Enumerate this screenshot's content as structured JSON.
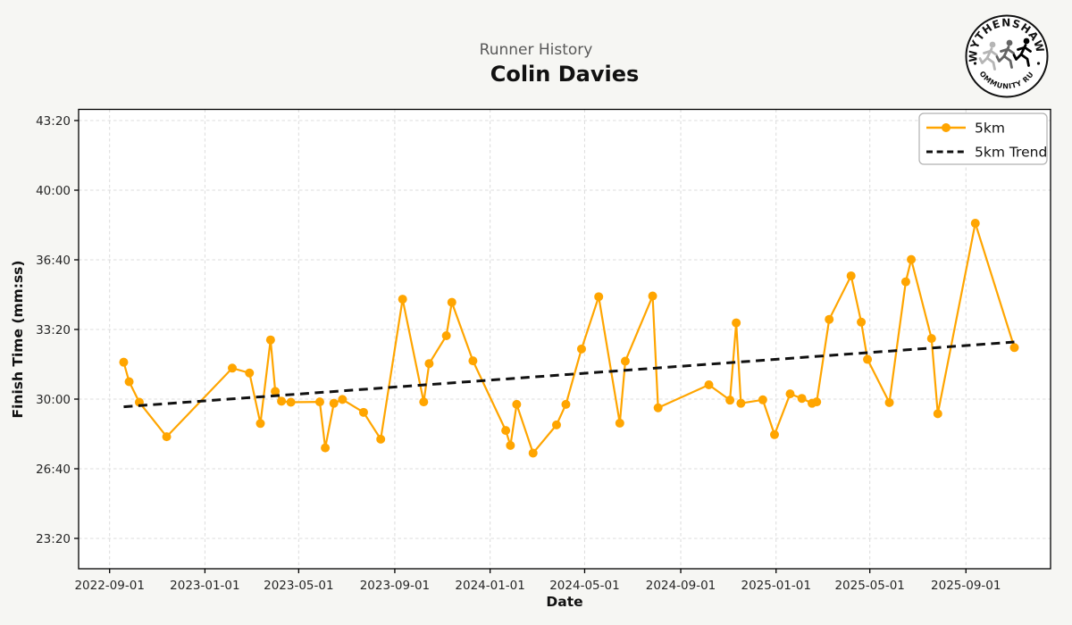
{
  "header": {
    "suptitle": "Runner History",
    "runner_name": "Colin Davies"
  },
  "logo": {
    "top_text": "WYTHENSHAWE",
    "bottom_text": "COMMUNITY RUN"
  },
  "legend": {
    "series_label": "5km",
    "trend_label": "5km Trend"
  },
  "colors": {
    "series": "#FFA500",
    "trend": "#111111",
    "figure_bg": "#f6f6f3",
    "plot_bg": "#ffffff",
    "grid": "#dcdcdc",
    "spine": "#000000"
  },
  "chart_data": {
    "type": "line",
    "title": "Runner History",
    "subtitle": "Colin Davies",
    "xlabel": "Date",
    "ylabel": "Finish Time (mm:ss)",
    "legend_entries": [
      "5km",
      "5km Trend"
    ],
    "legend_position": "upper right",
    "grid": true,
    "x_ticks": [
      "2022-09-01",
      "2023-01-01",
      "2023-05-01",
      "2023-09-01",
      "2024-01-01",
      "2024-05-01",
      "2024-09-01",
      "2025-01-01",
      "2025-05-01",
      "2025-09-01"
    ],
    "y_ticks": [
      "23:20",
      "26:40",
      "30:00",
      "33:20",
      "36:40",
      "40:00",
      "43:20"
    ],
    "x_range": [
      "2022-07-23",
      "2025-12-18"
    ],
    "y_range_mmss": [
      "21:53",
      "43:52"
    ],
    "series": [
      {
        "name": "5km",
        "marker": "circle",
        "points": [
          [
            "2022-09-19",
            "31:46"
          ],
          [
            "2022-09-26",
            "30:50"
          ],
          [
            "2022-10-09",
            "29:51"
          ],
          [
            "2022-11-13",
            "28:12"
          ],
          [
            "2023-02-05",
            "31:29"
          ],
          [
            "2023-02-27",
            "31:15"
          ],
          [
            "2023-03-13",
            "28:50"
          ],
          [
            "2023-03-26",
            "32:50"
          ],
          [
            "2023-04-01",
            "30:22"
          ],
          [
            "2023-04-09",
            "29:54"
          ],
          [
            "2023-04-21",
            "29:51"
          ],
          [
            "2023-05-28",
            "29:52"
          ],
          [
            "2023-06-04",
            "27:40"
          ],
          [
            "2023-06-15",
            "29:48"
          ],
          [
            "2023-06-26",
            "29:59"
          ],
          [
            "2023-07-23",
            "29:22"
          ],
          [
            "2023-08-14",
            "28:05"
          ],
          [
            "2023-09-11",
            "34:47"
          ],
          [
            "2023-10-08",
            "29:52"
          ],
          [
            "2023-10-15",
            "31:42"
          ],
          [
            "2023-11-06",
            "33:02"
          ],
          [
            "2023-11-13",
            "34:38"
          ],
          [
            "2023-12-10",
            "31:50"
          ],
          [
            "2024-01-21",
            "28:30"
          ],
          [
            "2024-01-27",
            "27:47"
          ],
          [
            "2024-02-04",
            "29:45"
          ],
          [
            "2024-02-25",
            "27:25"
          ],
          [
            "2024-03-26",
            "28:46"
          ],
          [
            "2024-04-07",
            "29:45"
          ],
          [
            "2024-04-27",
            "32:24"
          ],
          [
            "2024-05-19",
            "34:54"
          ],
          [
            "2024-06-15",
            "28:51"
          ],
          [
            "2024-06-22",
            "31:49"
          ],
          [
            "2024-07-27",
            "34:56"
          ],
          [
            "2024-08-03",
            "29:35"
          ],
          [
            "2024-10-07",
            "30:41"
          ],
          [
            "2024-11-03",
            "29:57"
          ],
          [
            "2024-11-11",
            "33:39"
          ],
          [
            "2024-11-17",
            "29:48"
          ],
          [
            "2024-12-15",
            "29:58"
          ],
          [
            "2024-12-30",
            "28:18"
          ],
          [
            "2025-01-19",
            "30:15"
          ],
          [
            "2025-02-03",
            "30:02"
          ],
          [
            "2025-02-16",
            "29:48"
          ],
          [
            "2025-02-22",
            "29:52"
          ],
          [
            "2025-03-10",
            "33:49"
          ],
          [
            "2025-04-07",
            "35:54"
          ],
          [
            "2025-04-20",
            "33:41"
          ],
          [
            "2025-04-28",
            "31:54"
          ],
          [
            "2025-05-26",
            "29:50"
          ],
          [
            "2025-06-16",
            "35:37"
          ],
          [
            "2025-06-23",
            "36:41"
          ],
          [
            "2025-07-19",
            "32:54"
          ],
          [
            "2025-07-27",
            "29:18"
          ],
          [
            "2025-09-13",
            "38:25"
          ],
          [
            "2025-11-02",
            "32:28"
          ]
        ]
      }
    ],
    "trend": {
      "name": "5km Trend",
      "style": "dashed",
      "start": [
        "2022-09-19",
        "29:38"
      ],
      "end": [
        "2025-11-02",
        "32:44"
      ]
    }
  }
}
